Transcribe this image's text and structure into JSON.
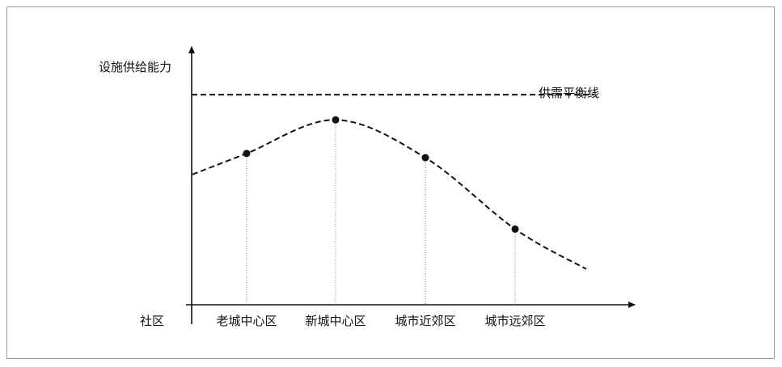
{
  "chart_data": {
    "type": "line",
    "ylabel": "设施供给能力",
    "xlabel": "社区",
    "reference_line": {
      "label": "供需平衡线",
      "style": "dashed"
    },
    "categories": [
      "老城中心区",
      "新城中心区",
      "城市近郊区",
      "城市远郊区"
    ],
    "series": [
      {
        "values": [
          0.72,
          0.88,
          0.7,
          0.36
        ],
        "style": "dashed"
      }
    ],
    "curve_start": 0.62,
    "curve_end": 0.17,
    "balance_level": 1.0,
    "ylim": [
      0,
      1.08
    ],
    "grid": false,
    "colors": {
      "line": "#111111",
      "guide": "#777777"
    }
  }
}
